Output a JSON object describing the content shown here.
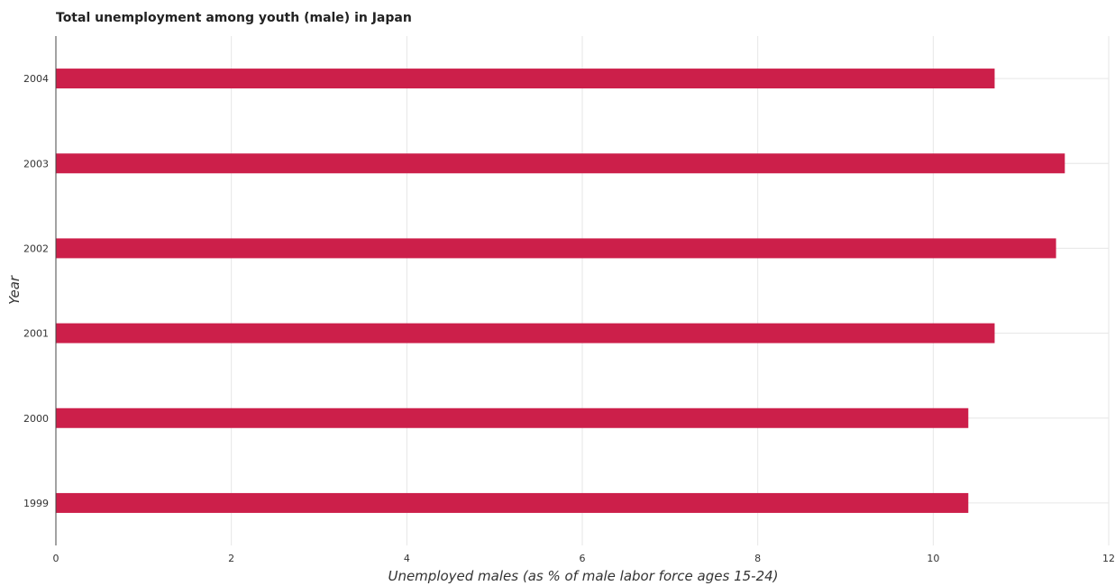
{
  "chart_data": {
    "type": "bar",
    "orientation": "horizontal",
    "title": "Total unemployment among youth (male) in Japan",
    "xlabel": "Unemployed males (as % of male labor force ages 15-24)",
    "ylabel": "Year",
    "categories": [
      "1999",
      "2000",
      "2001",
      "2002",
      "2003",
      "2004"
    ],
    "values": [
      10.4,
      10.4,
      10.7,
      11.4,
      11.5,
      10.7
    ],
    "xlim": [
      0,
      12
    ],
    "xticks": [
      0,
      2,
      4,
      6,
      8,
      10,
      12
    ],
    "grid": true,
    "bar_color": "#cc1f4a"
  }
}
